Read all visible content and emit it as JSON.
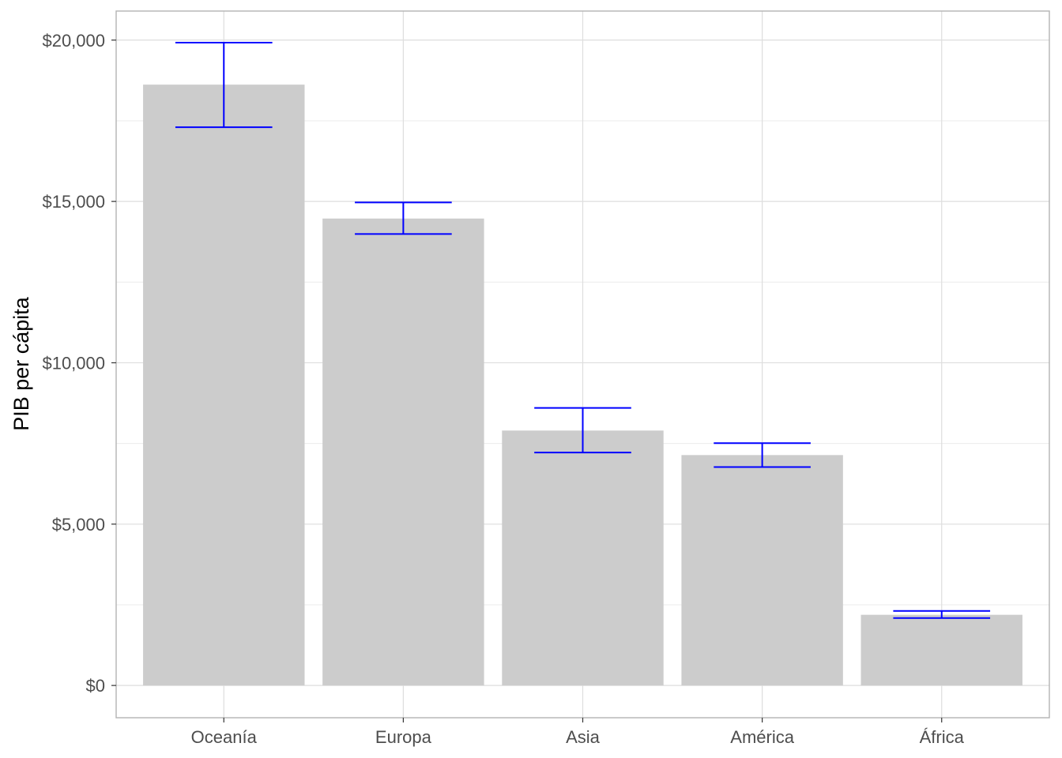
{
  "chart_data": {
    "type": "bar",
    "categories": [
      "Oceanía",
      "Europa",
      "Asia",
      "América",
      "África"
    ],
    "values": [
      18620,
      14470,
      7900,
      7140,
      2190
    ],
    "error_bars": {
      "lower": [
        17300,
        13990,
        7220,
        6770,
        2090
      ],
      "upper": [
        19920,
        14970,
        8600,
        7510,
        2310
      ]
    },
    "title": "",
    "xlabel": "",
    "ylabel": "PIB per cápita",
    "ylim": [
      -1000,
      20900
    ],
    "y_ticks": [
      0,
      5000,
      10000,
      15000,
      20000
    ],
    "y_tick_labels": [
      "$0",
      "$5,000",
      "$10,000",
      "$15,000",
      "$20,000"
    ],
    "grid": true,
    "legend": "none",
    "colors": {
      "bar_fill": "#cccccc",
      "error_bar": "#0000ff",
      "grid_major": "#dedede",
      "grid_minor": "#ebebeb",
      "panel_border": "#b3b3b3"
    }
  }
}
